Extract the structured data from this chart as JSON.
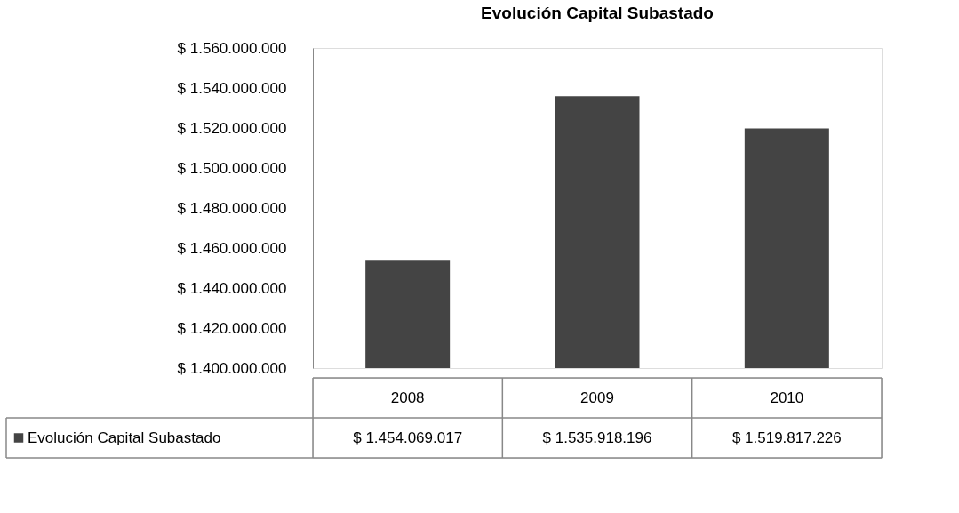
{
  "chart_data": {
    "type": "bar",
    "title": "Evolución Capital Subastado",
    "categories": [
      "2008",
      "2009",
      "2010"
    ],
    "series": [
      {
        "name": "Evolución Capital Subastado",
        "color": "#444444",
        "values": [
          1454069017,
          1535918196,
          1519817226
        ],
        "value_labels": [
          "$ 1.454.069.017",
          "$ 1.535.918.196",
          "$ 1.519.817.226"
        ]
      }
    ],
    "ylim": [
      1400000000,
      1560000000
    ],
    "yticks": [
      {
        "value": 1400000000,
        "label": "$ 1.400.000.000"
      },
      {
        "value": 1420000000,
        "label": "$ 1.420.000.000"
      },
      {
        "value": 1440000000,
        "label": "$ 1.440.000.000"
      },
      {
        "value": 1460000000,
        "label": "$ 1.460.000.000"
      },
      {
        "value": 1480000000,
        "label": "$ 1.480.000.000"
      },
      {
        "value": 1500000000,
        "label": "$ 1.500.000.000"
      },
      {
        "value": 1520000000,
        "label": "$ 1.520.000.000"
      },
      {
        "value": 1540000000,
        "label": "$ 1.540.000.000"
      },
      {
        "value": 1560000000,
        "label": "$ 1.560.000.000"
      }
    ],
    "grid": false
  }
}
